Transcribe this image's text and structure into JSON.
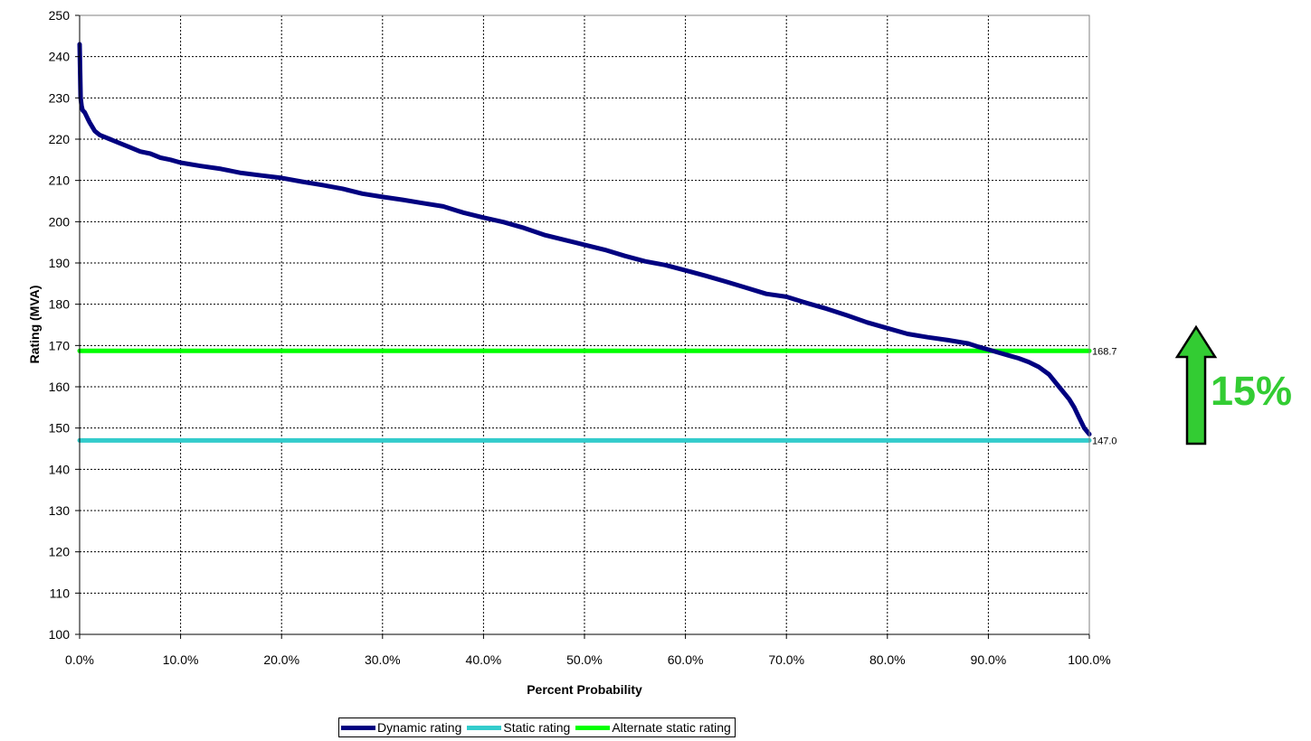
{
  "chart_data": {
    "type": "line",
    "title": "",
    "xlabel": "Percent Probability",
    "ylabel": "Rating (MVA)",
    "xlim": [
      0,
      100
    ],
    "ylim": [
      100,
      250
    ],
    "x_ticks": [
      "0.0%",
      "10.0%",
      "20.0%",
      "30.0%",
      "40.0%",
      "50.0%",
      "60.0%",
      "70.0%",
      "80.0%",
      "90.0%",
      "100.0%"
    ],
    "y_ticks": [
      "100",
      "110",
      "120",
      "130",
      "140",
      "150",
      "160",
      "170",
      "180",
      "190",
      "200",
      "210",
      "220",
      "230",
      "240",
      "250"
    ],
    "grid": true,
    "legend_position": "bottom",
    "series": [
      {
        "name": "Dynamic rating",
        "color": "#000080",
        "x": [
          0,
          0.05,
          0.1,
          0.2,
          0.3,
          0.5,
          0.8,
          1,
          1.5,
          2,
          3,
          4,
          5,
          6,
          7,
          8,
          9,
          10,
          12,
          14,
          16,
          18,
          20,
          22,
          24,
          26,
          28,
          30,
          32,
          34,
          36,
          38,
          40,
          42,
          44,
          46,
          48,
          50,
          52,
          54,
          56,
          58,
          60,
          62,
          64,
          66,
          68,
          70,
          72,
          74,
          76,
          78,
          80,
          82,
          84,
          86,
          88,
          89,
          90,
          91,
          92,
          93,
          94,
          95,
          96,
          97,
          98,
          98.5,
          99,
          99.5,
          100
        ],
        "values": [
          243,
          236,
          230,
          228,
          227,
          226.5,
          225,
          224,
          222,
          221,
          220,
          219,
          218,
          217,
          216.5,
          215.5,
          215,
          214.3,
          213.5,
          212.8,
          211.8,
          211.2,
          210.6,
          209.7,
          208.9,
          208,
          206.8,
          206,
          205.3,
          204.5,
          203.7,
          202.2,
          201,
          199.9,
          198.5,
          196.8,
          195.6,
          194.4,
          193.2,
          191.7,
          190.4,
          189.5,
          188.2,
          186.9,
          185.5,
          184,
          182.5,
          181.8,
          180.3,
          178.9,
          177.3,
          175.6,
          174.2,
          172.8,
          172,
          171.3,
          170.5,
          169.7,
          169,
          168.3,
          167.6,
          166.9,
          166,
          164.8,
          163,
          160,
          157,
          155,
          152.5,
          150,
          148.5
        ]
      },
      {
        "name": "Static rating",
        "color": "#33CCCC",
        "x": [
          0,
          100
        ],
        "values": [
          147.0,
          147.0
        ],
        "end_label": "147.0"
      },
      {
        "name": "Alternate static rating",
        "color": "#00FF00",
        "x": [
          0,
          100
        ],
        "values": [
          168.7,
          168.7
        ],
        "end_label": "168.7"
      }
    ],
    "annotation": {
      "text": "15%",
      "color": "#33CC33",
      "icon": "up-arrow-icon",
      "arrow_color": "#33CC33"
    }
  }
}
